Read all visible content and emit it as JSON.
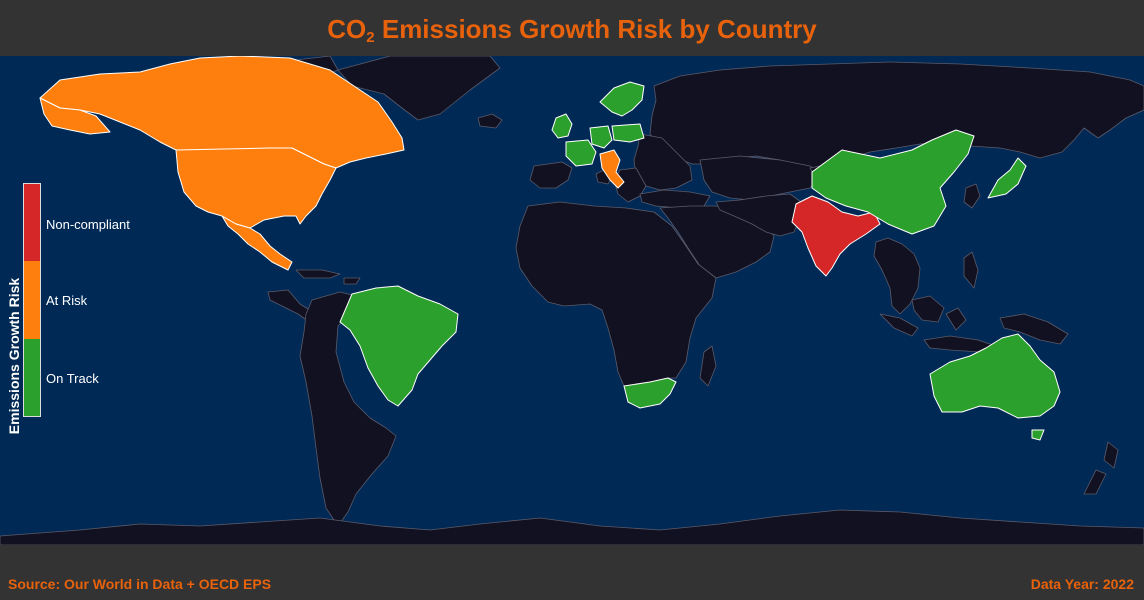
{
  "title": {
    "prefix": "CO",
    "subscript": "2",
    "suffix": " Emissions Growth Risk by Country",
    "color": "#e8620c"
  },
  "legend": {
    "title": "Emissions Growth Risk",
    "items": [
      {
        "label": "Non-compliant",
        "color": "#d62728"
      },
      {
        "label": "At Risk",
        "color": "#ff7f0e"
      },
      {
        "label": "On Track",
        "color": "#2ca02c"
      }
    ]
  },
  "footer": {
    "source": "Source: Our World in Data + OECD EPS",
    "year": "Data Year: 2022"
  },
  "map": {
    "ocean_color": "#002a55",
    "land_color": "#111122",
    "border_color": "#5a5a6a",
    "countries": [
      {
        "region": "Canada",
        "status": "At Risk"
      },
      {
        "region": "United States",
        "status": "At Risk"
      },
      {
        "region": "Mexico",
        "status": "At Risk"
      },
      {
        "region": "Italy",
        "status": "At Risk"
      },
      {
        "region": "India",
        "status": "Non-compliant"
      },
      {
        "region": "Brazil",
        "status": "On Track"
      },
      {
        "region": "China",
        "status": "On Track"
      },
      {
        "region": "Japan",
        "status": "On Track"
      },
      {
        "region": "Australia",
        "status": "On Track"
      },
      {
        "region": "South Africa",
        "status": "On Track"
      },
      {
        "region": "United Kingdom",
        "status": "On Track"
      },
      {
        "region": "France",
        "status": "On Track"
      },
      {
        "region": "Germany",
        "status": "On Track"
      },
      {
        "region": "Scandinavia",
        "status": "On Track"
      },
      {
        "region": "Poland",
        "status": "On Track"
      }
    ]
  }
}
